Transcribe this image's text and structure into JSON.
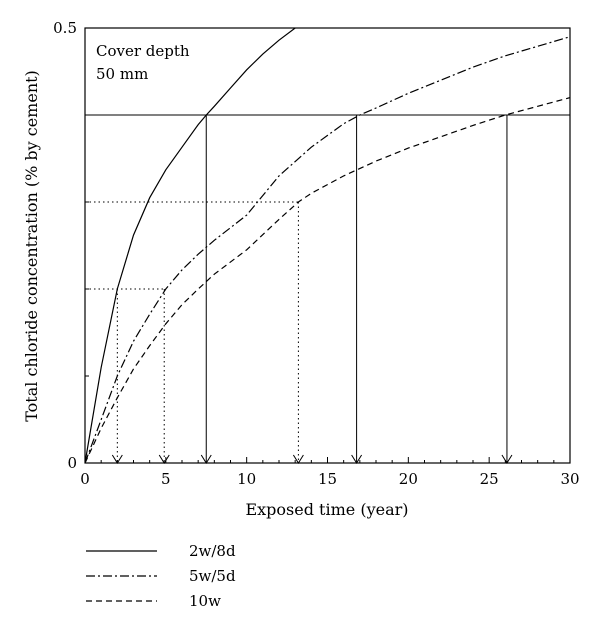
{
  "chart_data": {
    "type": "line",
    "title": "",
    "xlabel": "Exposed time (year)",
    "ylabel": "Total chloride concentration (% by cement)",
    "xlim": [
      0,
      30
    ],
    "ylim": [
      0,
      0.5
    ],
    "xticks": [
      0,
      5,
      10,
      15,
      20,
      25,
      30
    ],
    "xtick_labels": [
      "0",
      "5",
      "10",
      "15",
      "20",
      "25",
      "30"
    ],
    "yticks": [
      0,
      0.5
    ],
    "ytick_labels": [
      "0",
      "0.5"
    ],
    "grid": false,
    "legend_position": "bottom-left, below chart",
    "annotation": {
      "line1": "Cover depth",
      "line2": "50 mm"
    },
    "series": [
      {
        "name": "2w/8d",
        "dash": "solid",
        "x": [
          0,
          1,
          2,
          3,
          4,
          5,
          6,
          7,
          7.5,
          8,
          9,
          10,
          11,
          12,
          13
        ],
        "y": [
          0,
          0.11,
          0.2,
          0.262,
          0.305,
          0.337,
          0.363,
          0.389,
          0.4,
          0.41,
          0.431,
          0.452,
          0.47,
          0.486,
          0.5
        ]
      },
      {
        "name": "5w/5d",
        "dash": "dashdot",
        "x": [
          0,
          1,
          2,
          3,
          4,
          5,
          6,
          7,
          8,
          10,
          12,
          14,
          16,
          17,
          18,
          20,
          22,
          24,
          26,
          28,
          30
        ],
        "y": [
          0,
          0.05,
          0.1,
          0.14,
          0.171,
          0.2,
          0.222,
          0.24,
          0.256,
          0.285,
          0.33,
          0.363,
          0.39,
          0.4,
          0.408,
          0.425,
          0.44,
          0.455,
          0.468,
          0.479,
          0.49
        ]
      },
      {
        "name": "10w",
        "dash": "dashed",
        "x": [
          0,
          1,
          2,
          3,
          4,
          5,
          6,
          7,
          8,
          10,
          12,
          13.2,
          14,
          16,
          18,
          20,
          22,
          24,
          26,
          28,
          30
        ],
        "y": [
          0,
          0.04,
          0.075,
          0.108,
          0.135,
          0.16,
          0.182,
          0.2,
          0.217,
          0.245,
          0.28,
          0.3,
          0.31,
          0.33,
          0.347,
          0.362,
          0.375,
          0.388,
          0.4,
          0.41,
          0.42
        ]
      }
    ],
    "reference_lines": {
      "solid_threshold": 0.4,
      "dotted_thresholds": [
        0.2,
        0.3
      ],
      "solid_drops": [
        7.5,
        16.8,
        26.1
      ],
      "dotted_drops": [
        {
          "x": 2.0,
          "y": 0.2
        },
        {
          "x": 4.9,
          "y": 0.2
        },
        {
          "x": 13.2,
          "y": 0.3
        }
      ]
    }
  }
}
